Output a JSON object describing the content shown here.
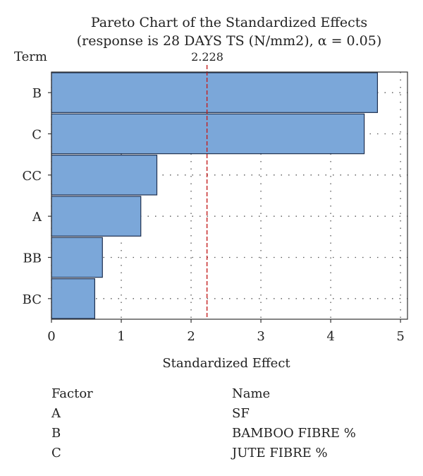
{
  "chart_data": {
    "type": "bar",
    "orientation": "horizontal",
    "title": "Pareto Chart of the Standardized Effects",
    "subtitle": "(response is 28 DAYS TS (N/mm2), α = 0.05)",
    "ylabel": "Term",
    "xlabel": "Standardized Effect",
    "categories": [
      "B",
      "C",
      "CC",
      "A",
      "BB",
      "BC"
    ],
    "values": [
      4.67,
      4.48,
      1.51,
      1.28,
      0.73,
      0.62
    ],
    "xlim": [
      0,
      5.1
    ],
    "xticks": [
      "0",
      "1",
      "2",
      "3",
      "4",
      "5"
    ],
    "reference_line": {
      "value": 2.228,
      "label": "2.228"
    },
    "grid": true,
    "bar_color": "#7ba7d9"
  },
  "factor_table": {
    "header": {
      "factor": "Factor",
      "name": "Name"
    },
    "rows": [
      {
        "factor": "A",
        "name": "SF"
      },
      {
        "factor": "B",
        "name": "BAMBOO FIBRE %"
      },
      {
        "factor": "C",
        "name": "JUTE FIBRE %"
      }
    ]
  }
}
